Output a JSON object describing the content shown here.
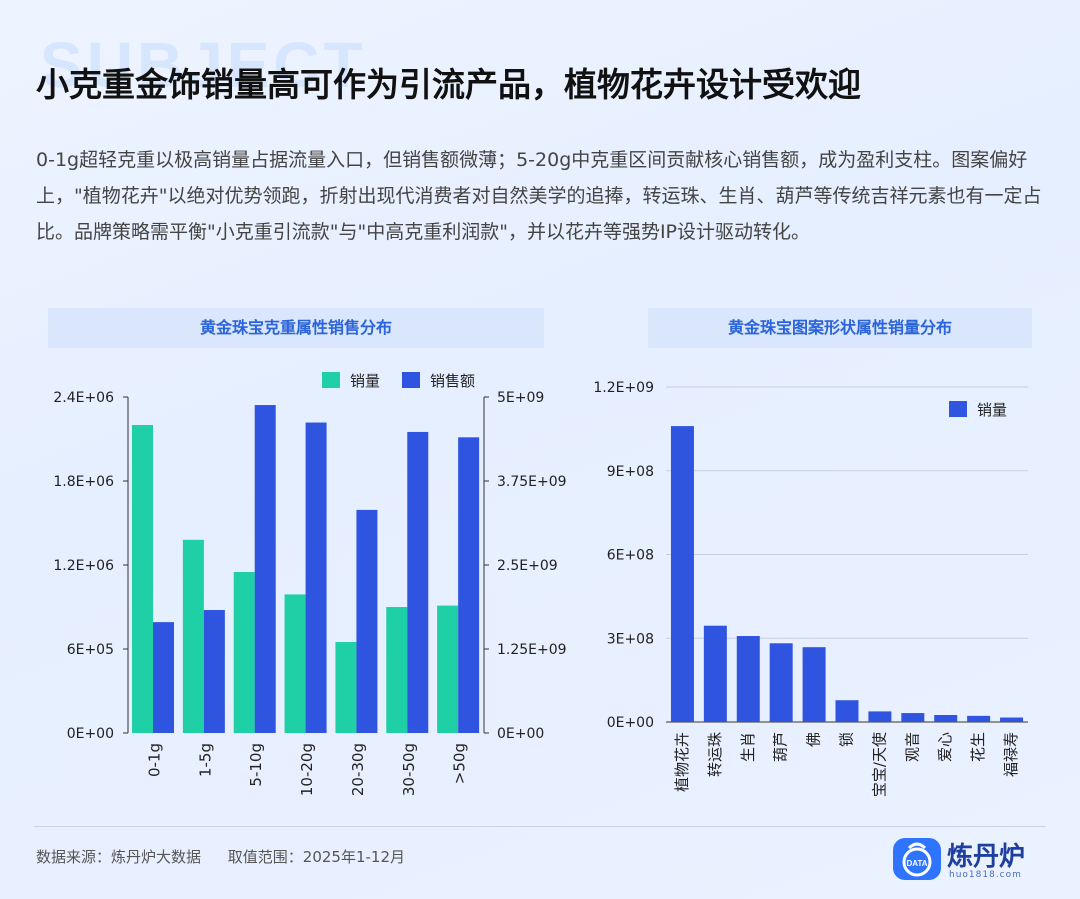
{
  "watermark": "SUBJECT",
  "title": "小克重金饰销量高可作为引流产品，植物花卉设计受欢迎",
  "summary": "0-1g超轻克重以极高销量占据流量入口，但销售额微薄；5-20g中克重区间贡献核心销售额，成为盈利支柱。图案偏好上，\"植物花卉\"以绝对优势领跑，折射出现代消费者对自然美学的追捧，转运珠、生肖、葫芦等传统吉祥元素也有一定占比。品牌策略需平衡\"小克重引流款\"与\"中高克重利润款\"，并以花卉等强势IP设计驱动转化。",
  "colors": {
    "teal": "#1fcfa5",
    "blue": "#2f55e0",
    "accent": "#2b63d9"
  },
  "chart_data": [
    {
      "type": "bar",
      "title": "黄金珠宝克重属性销售分布",
      "categories": [
        "0-1g",
        "1-5g",
        "5-10g",
        "10-20g",
        "20-30g",
        "30-50g",
        ">50g"
      ],
      "series": [
        {
          "name": "销量",
          "axis": "left",
          "color": "#1fcfa5",
          "values": [
            2200000,
            1380000,
            1150000,
            990000,
            650000,
            900000,
            910000
          ]
        },
        {
          "name": "销售额",
          "axis": "right",
          "color": "#2f55e0",
          "values": [
            1650000000,
            1830000000,
            4880000000,
            4620000000,
            3320000000,
            4480000000,
            4400000000
          ]
        }
      ],
      "yleft": {
        "min": 0,
        "max": 2400000,
        "ticks": [
          "0E+00",
          "6E+05",
          "1.2E+06",
          "1.8E+06",
          "2.4E+06"
        ]
      },
      "yright": {
        "min": 0,
        "max": 5000000000,
        "ticks": [
          "0E+00",
          "1.25E+09",
          "2.5E+09",
          "3.75E+09",
          "5E+09"
        ]
      },
      "legend": "top-right",
      "grid": false
    },
    {
      "type": "bar",
      "title": "黄金珠宝图案形状属性销量分布",
      "categories": [
        "植物花卉",
        "转运珠",
        "生肖",
        "葫芦",
        "佛",
        "锁",
        "宝宝/天使",
        "观音",
        "爱心",
        "花生",
        "福禄寿"
      ],
      "series": [
        {
          "name": "销量",
          "color": "#2f55e0",
          "values": [
            1060000000,
            345000000,
            308000000,
            282000000,
            268000000,
            78000000,
            38000000,
            32000000,
            25000000,
            22000000,
            16000000
          ]
        }
      ],
      "yleft": {
        "min": 0,
        "max": 1200000000,
        "ticks": [
          "0E+00",
          "3E+08",
          "6E+08",
          "9E+08",
          "1.2E+09"
        ]
      },
      "legend": "top-right",
      "grid": true
    }
  ],
  "footer": {
    "source": "数据来源：炼丹炉大数据",
    "range": "取值范围：2025年1-12月"
  },
  "logo": {
    "name": "炼丹炉",
    "badge": "DATA",
    "url": "huo1818.com"
  }
}
